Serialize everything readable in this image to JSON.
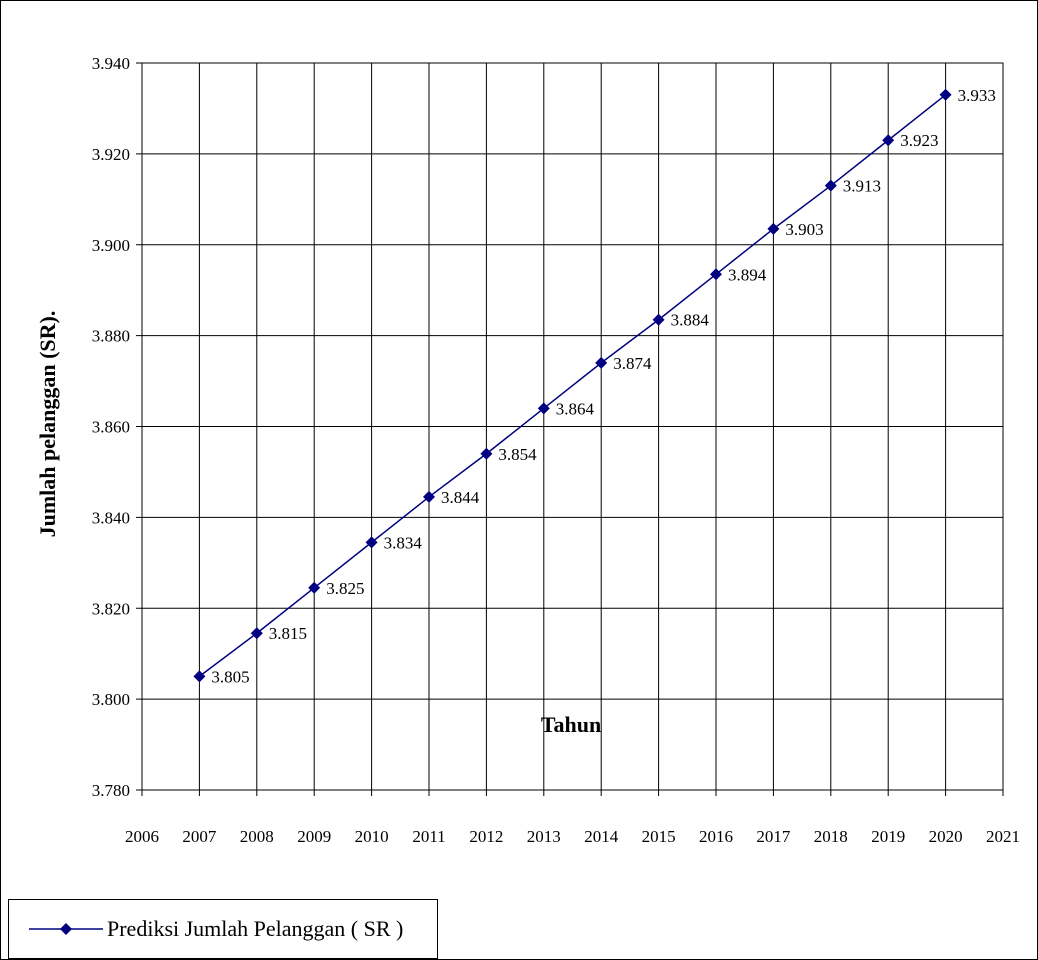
{
  "chart_data": {
    "type": "line",
    "title": "",
    "xlabel": "Tahun",
    "ylabel": "Jumlah pelanggan (SR).",
    "xlim": [
      2006,
      2021
    ],
    "ylim": [
      3.78,
      3.94
    ],
    "x_ticks": [
      "2006",
      "2007",
      "2008",
      "2009",
      "2010",
      "2011",
      "2012",
      "2013",
      "2014",
      "2015",
      "2016",
      "2017",
      "2018",
      "2019",
      "2020",
      "2021"
    ],
    "y_ticks": [
      "3.780",
      "3.800",
      "3.820",
      "3.840",
      "3.860",
      "3.880",
      "3.900",
      "3.920",
      "3.940"
    ],
    "grid": true,
    "legend_position": "bottom-left",
    "series": [
      {
        "name": "Prediksi Jumlah Pelanggan ( SR )",
        "color": "#000080",
        "marker": "diamond",
        "x": [
          2007,
          2008,
          2009,
          2010,
          2011,
          2012,
          2013,
          2014,
          2015,
          2016,
          2017,
          2018,
          2019,
          2020
        ],
        "values": [
          3.805,
          3.8145,
          3.8245,
          3.8345,
          3.8445,
          3.854,
          3.864,
          3.874,
          3.8835,
          3.8935,
          3.9035,
          3.913,
          3.923,
          3.933
        ],
        "labels": [
          "3.805",
          "3.815",
          "3.825",
          "3.834",
          "3.844",
          "3.854",
          "3.864",
          "3.874",
          "3.884",
          "3.894",
          "3.903",
          "3.913",
          "3.923",
          "3.933"
        ]
      }
    ]
  }
}
